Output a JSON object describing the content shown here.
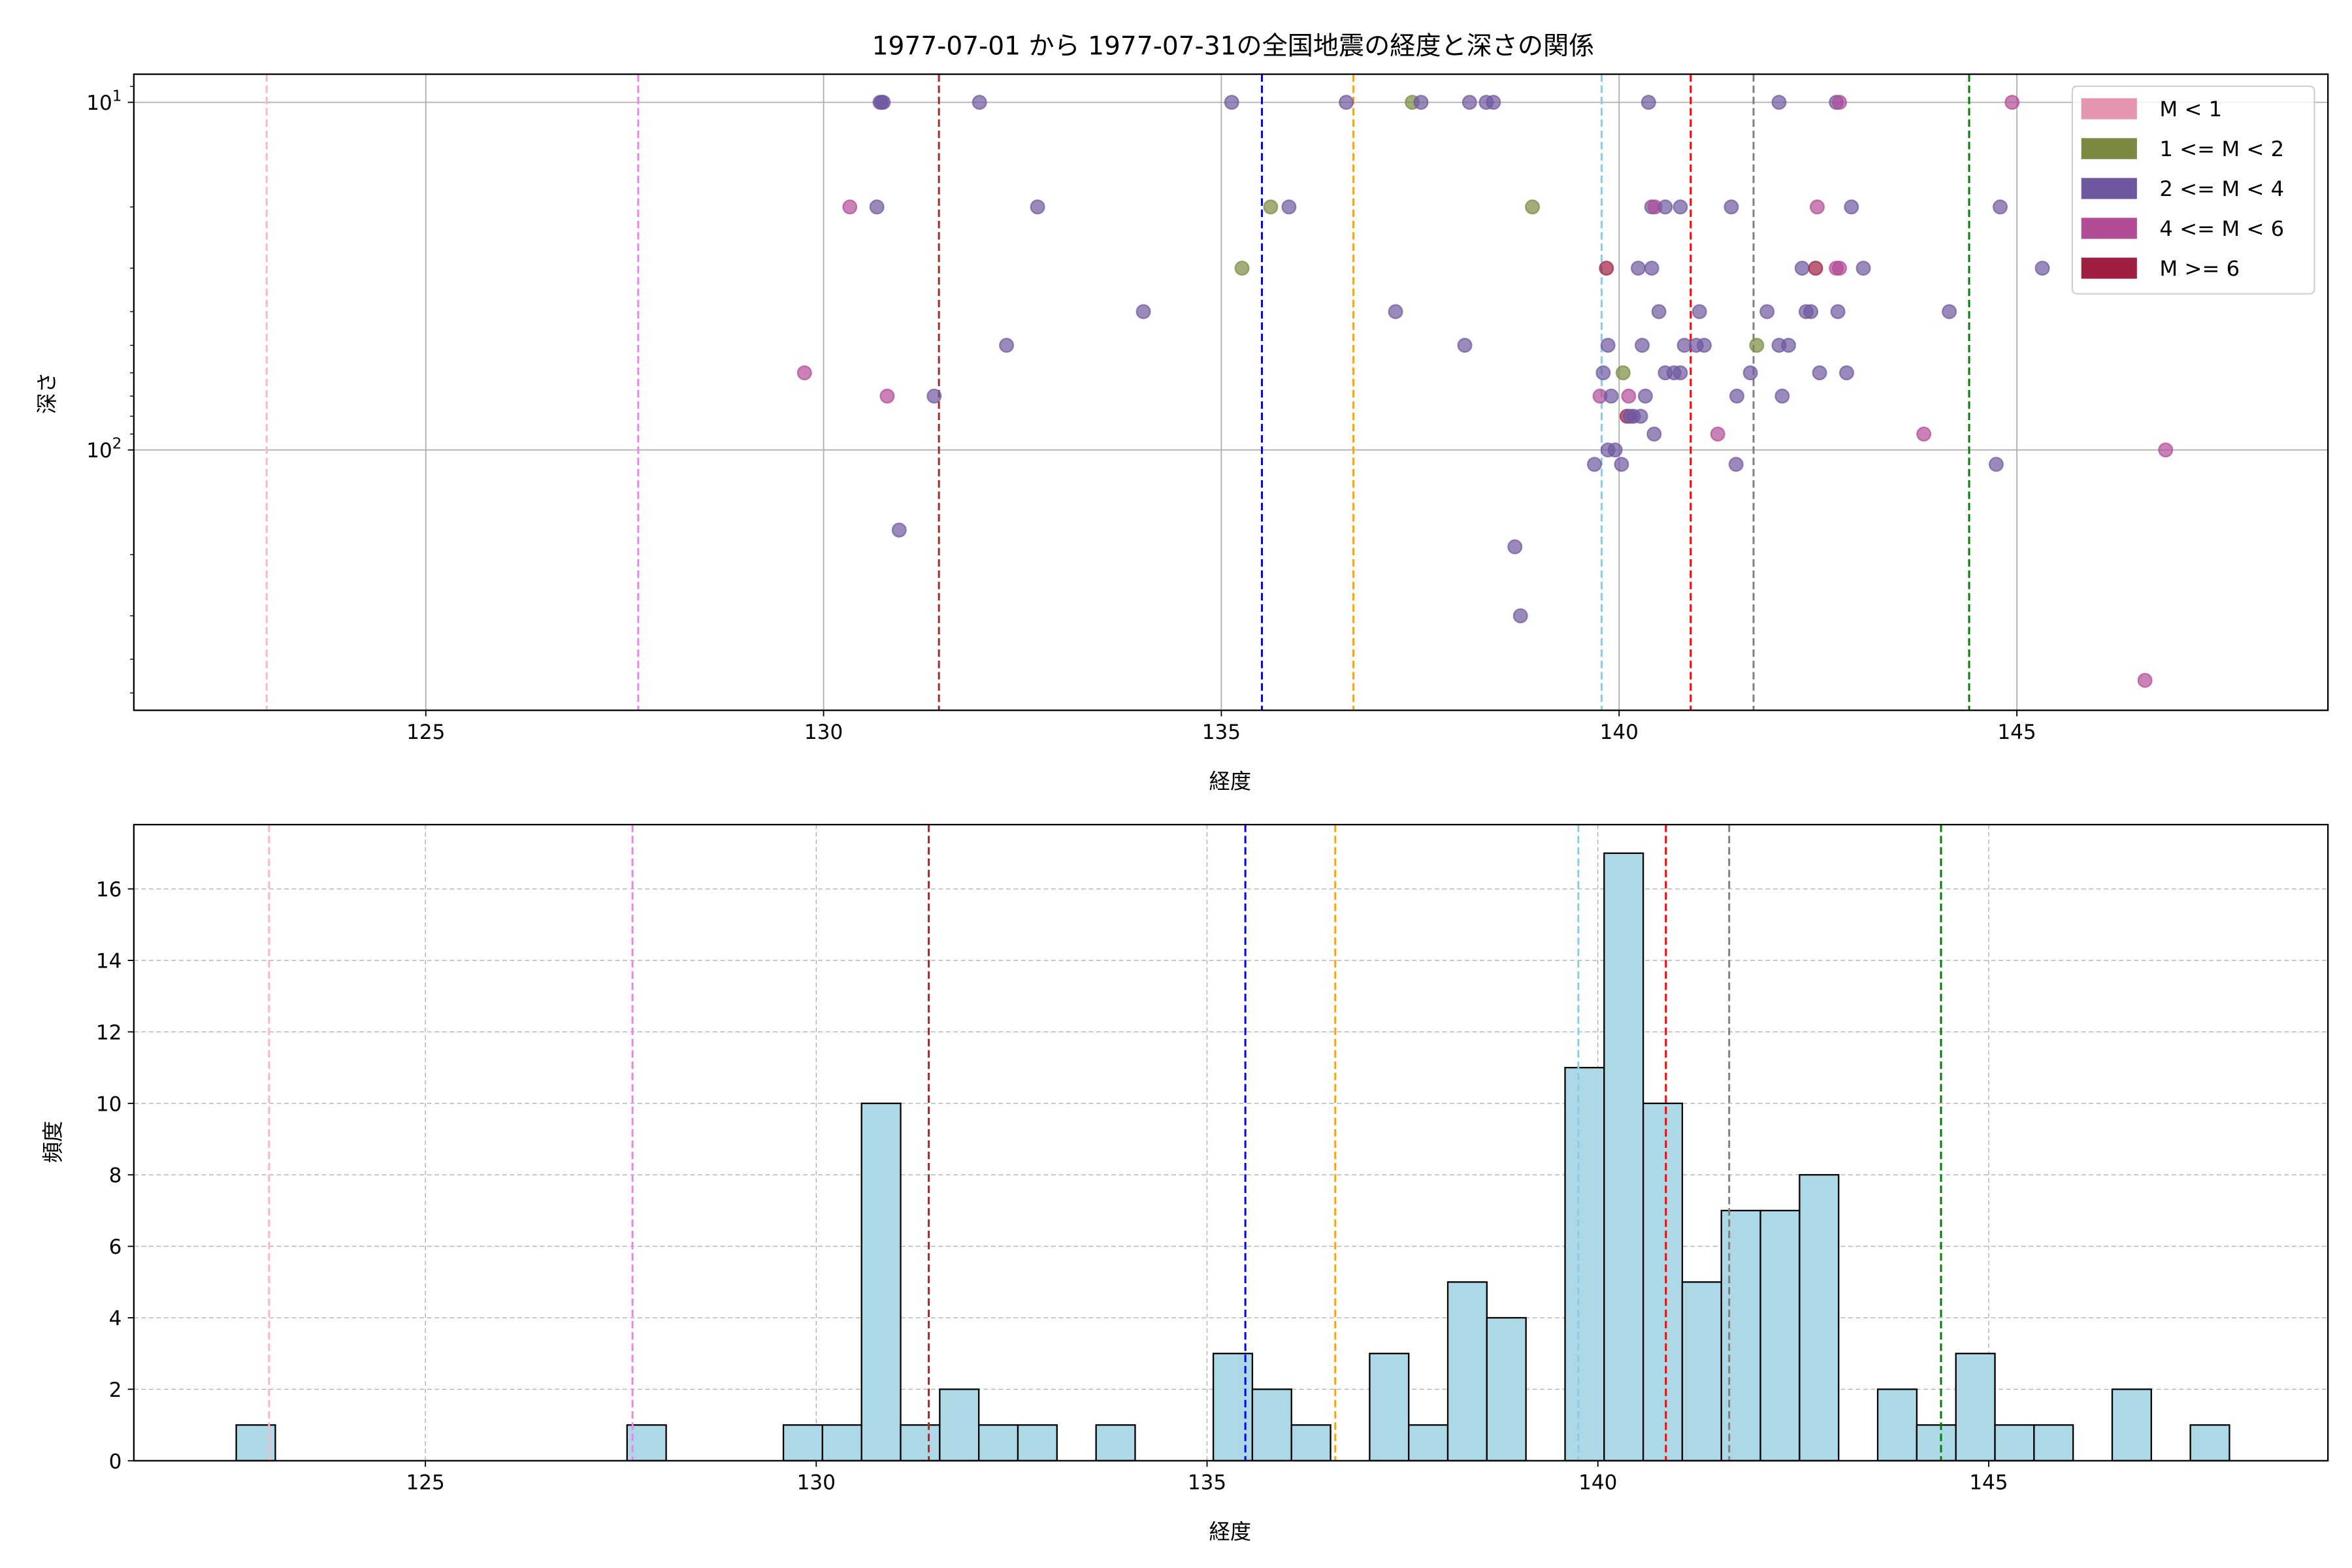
{
  "chart_data": [
    {
      "type": "scatter",
      "title": "1977-07-01 から 1977-07-31の全国地震の経度と深さの関係",
      "xlabel": "経度",
      "ylabel": "深さ",
      "xlim": [
        121.33,
        148.91
      ],
      "ylim_log_inverted": [
        561,
        8.3
      ],
      "yscale": "log",
      "x_ticks": [
        125,
        130,
        135,
        140,
        145
      ],
      "y_ticks": [
        {
          "value": 10,
          "base": "10",
          "exp": "1"
        },
        {
          "value": 100,
          "base": "10",
          "exp": "2"
        }
      ],
      "grid": true,
      "legend_position": "top-right",
      "legend": [
        {
          "label": "M < 1",
          "color": "#e695b0"
        },
        {
          "label": "1 <= M < 2",
          "color": "#7a8b41"
        },
        {
          "label": "2 <= M < 4",
          "color": "#6f58a0"
        },
        {
          "label": "4 <= M < 6",
          "color": "#b24c97"
        },
        {
          "label": "M >= 6",
          "color": "#a01f41"
        }
      ],
      "reference_lines": [
        {
          "x": 123.0,
          "color": "#ffb6c1"
        },
        {
          "x": 127.67,
          "color": "#ee82ee"
        },
        {
          "x": 131.45,
          "color": "#a52a2a"
        },
        {
          "x": 135.51,
          "color": "#0000ff"
        },
        {
          "x": 136.66,
          "color": "#ffa500"
        },
        {
          "x": 139.78,
          "color": "#87ceeb"
        },
        {
          "x": 140.9,
          "color": "#ff0000"
        },
        {
          "x": 141.69,
          "color": "#808080"
        },
        {
          "x": 144.4,
          "color": "#008000"
        }
      ],
      "points": [
        [
          130.71,
          10,
          2
        ],
        [
          130.73,
          10,
          2
        ],
        [
          130.75,
          10,
          2
        ],
        [
          131.96,
          10,
          2
        ],
        [
          135.13,
          10,
          2
        ],
        [
          136.57,
          10,
          2
        ],
        [
          137.4,
          10,
          1
        ],
        [
          137.51,
          10,
          2
        ],
        [
          138.12,
          10,
          2
        ],
        [
          138.33,
          10,
          2
        ],
        [
          138.42,
          10,
          2
        ],
        [
          140.37,
          10,
          2
        ],
        [
          142.01,
          10,
          2
        ],
        [
          142.73,
          10,
          2
        ],
        [
          142.77,
          10,
          3
        ],
        [
          144.94,
          10,
          3
        ],
        [
          130.33,
          20,
          3
        ],
        [
          130.67,
          20,
          2
        ],
        [
          132.69,
          20,
          2
        ],
        [
          135.62,
          20,
          1
        ],
        [
          135.85,
          20,
          2
        ],
        [
          138.91,
          20,
          1
        ],
        [
          140.41,
          20,
          2
        ],
        [
          140.45,
          20,
          3
        ],
        [
          140.58,
          20,
          2
        ],
        [
          140.77,
          20,
          2
        ],
        [
          141.41,
          20,
          2
        ],
        [
          142.49,
          20,
          3
        ],
        [
          142.92,
          20,
          2
        ],
        [
          144.79,
          20,
          2
        ],
        [
          135.26,
          30,
          1
        ],
        [
          139.84,
          30,
          4
        ],
        [
          140.24,
          30,
          2
        ],
        [
          140.41,
          30,
          2
        ],
        [
          142.3,
          30,
          2
        ],
        [
          142.47,
          30,
          4
        ],
        [
          142.73,
          30,
          3
        ],
        [
          142.77,
          30,
          3
        ],
        [
          143.07,
          30,
          2
        ],
        [
          145.32,
          30,
          2
        ],
        [
          134.02,
          40,
          2
        ],
        [
          137.19,
          40,
          2
        ],
        [
          140.5,
          40,
          2
        ],
        [
          141.01,
          40,
          2
        ],
        [
          141.86,
          40,
          2
        ],
        [
          142.35,
          40,
          2
        ],
        [
          142.41,
          40,
          2
        ],
        [
          142.75,
          40,
          2
        ],
        [
          144.15,
          40,
          2
        ],
        [
          132.3,
          50,
          2
        ],
        [
          138.06,
          50,
          2
        ],
        [
          139.86,
          50,
          2
        ],
        [
          140.29,
          50,
          2
        ],
        [
          140.82,
          50,
          2
        ],
        [
          140.97,
          50,
          2
        ],
        [
          141.07,
          50,
          2
        ],
        [
          141.73,
          50,
          1
        ],
        [
          142.01,
          50,
          2
        ],
        [
          142.13,
          50,
          2
        ],
        [
          129.76,
          60,
          3
        ],
        [
          139.8,
          60,
          2
        ],
        [
          140.05,
          60,
          1
        ],
        [
          140.58,
          60,
          2
        ],
        [
          140.69,
          60,
          2
        ],
        [
          140.77,
          60,
          2
        ],
        [
          141.65,
          60,
          2
        ],
        [
          142.52,
          60,
          2
        ],
        [
          142.86,
          60,
          2
        ],
        [
          130.8,
          70,
          3
        ],
        [
          131.39,
          70,
          2
        ],
        [
          139.76,
          70,
          3
        ],
        [
          139.9,
          70,
          2
        ],
        [
          140.12,
          70,
          3
        ],
        [
          140.33,
          70,
          2
        ],
        [
          141.48,
          70,
          2
        ],
        [
          142.05,
          70,
          2
        ],
        [
          140.1,
          80,
          4
        ],
        [
          140.14,
          80,
          2
        ],
        [
          140.18,
          80,
          2
        ],
        [
          140.27,
          80,
          2
        ],
        [
          140.44,
          90,
          2
        ],
        [
          141.24,
          90,
          3
        ],
        [
          143.83,
          90,
          3
        ],
        [
          139.86,
          100,
          2
        ],
        [
          139.95,
          100,
          2
        ],
        [
          146.87,
          100,
          3
        ],
        [
          139.69,
          110,
          2
        ],
        [
          140.03,
          110,
          2
        ],
        [
          141.47,
          110,
          2
        ],
        [
          144.74,
          110,
          2
        ],
        [
          130.95,
          170,
          2
        ],
        [
          138.69,
          190,
          2
        ],
        [
          138.76,
          300,
          2
        ],
        [
          146.61,
          460,
          3
        ]
      ]
    },
    {
      "type": "bar",
      "subtype": "histogram",
      "xlabel": "経度",
      "ylabel": "頻度",
      "xlim": [
        121.27,
        149.34
      ],
      "ylim": [
        0,
        17.8
      ],
      "x_ticks": [
        125,
        130,
        135,
        140,
        145
      ],
      "y_ticks": [
        0,
        2,
        4,
        6,
        8,
        10,
        12,
        14,
        16
      ],
      "grid": true,
      "bar_color": "#add8e6",
      "bin_start": 122.58,
      "bin_width": 0.5,
      "counts": [
        1,
        0,
        0,
        0,
        0,
        0,
        0,
        0,
        0,
        0,
        1,
        0,
        0,
        0,
        1,
        1,
        10,
        1,
        2,
        1,
        1,
        0,
        1,
        0,
        0,
        3,
        2,
        1,
        0,
        3,
        1,
        5,
        4,
        0,
        11,
        17,
        10,
        5,
        7,
        7,
        8,
        0,
        2,
        1,
        3,
        1,
        1,
        0,
        2,
        0,
        1
      ],
      "reference_lines": [
        {
          "x": 123.0,
          "color": "#ffb6c1"
        },
        {
          "x": 127.65,
          "color": "#ee82ee"
        },
        {
          "x": 131.44,
          "color": "#a52a2a"
        },
        {
          "x": 135.49,
          "color": "#0000ff"
        },
        {
          "x": 136.64,
          "color": "#ffa500"
        },
        {
          "x": 139.75,
          "color": "#87ceeb"
        },
        {
          "x": 140.87,
          "color": "#ff0000"
        },
        {
          "x": 141.68,
          "color": "#808080"
        },
        {
          "x": 144.39,
          "color": "#008000"
        }
      ]
    }
  ]
}
